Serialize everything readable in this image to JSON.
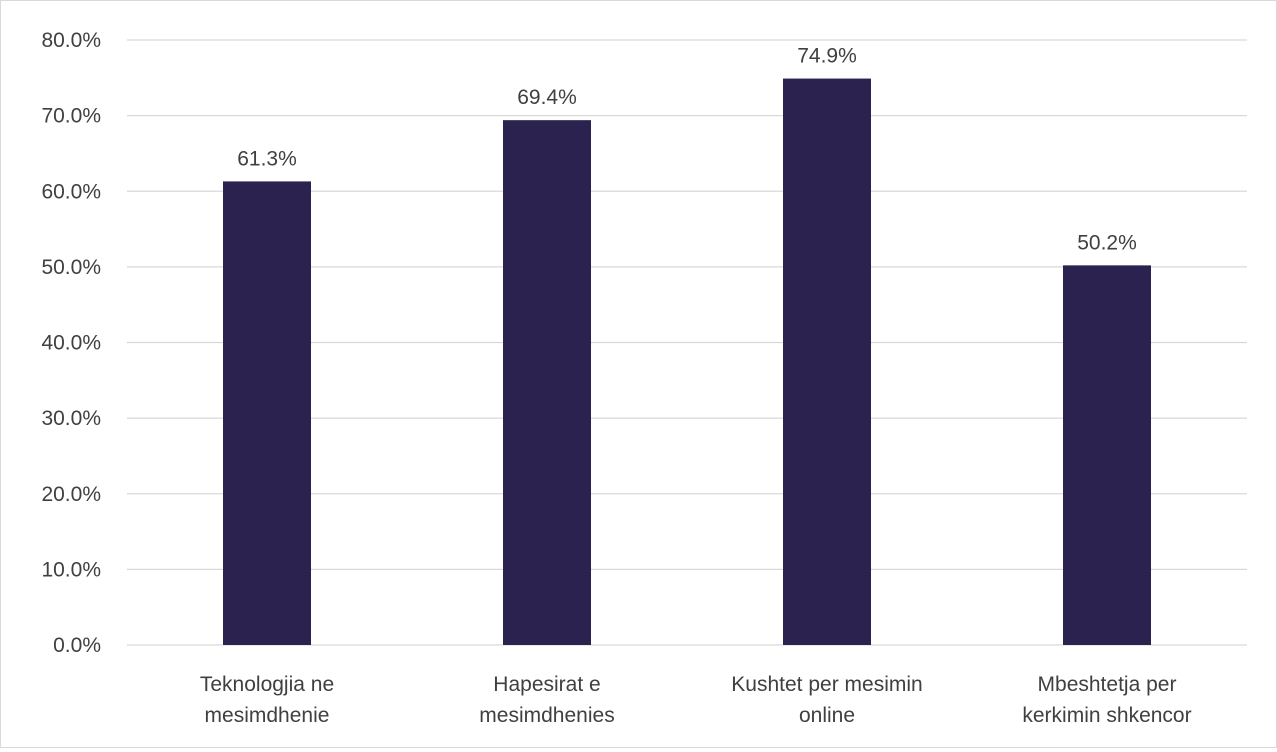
{
  "chart_data": {
    "type": "bar",
    "title": "",
    "xlabel": "",
    "ylabel": "",
    "categories": [
      [
        "Teknologjia ne",
        "mesimdhenie"
      ],
      [
        "Hapesirat e",
        "mesimdhenies"
      ],
      [
        "Kushtet per mesimin",
        "online"
      ],
      [
        "Mbeshtetja per",
        "kerkimin shkencor"
      ]
    ],
    "values": [
      61.3,
      69.4,
      74.9,
      50.2
    ],
    "data_labels": [
      "61.3%",
      "69.4%",
      "74.9%",
      "50.2%"
    ],
    "ylim": [
      0,
      80
    ],
    "yticks": [
      0,
      10,
      20,
      30,
      40,
      50,
      60,
      70,
      80
    ],
    "ytick_labels": [
      "0.0%",
      "10.0%",
      "20.0%",
      "30.0%",
      "40.0%",
      "50.0%",
      "60.0%",
      "70.0%",
      "80.0%"
    ],
    "grid": true,
    "legend": "none",
    "colors": {
      "bar": "#2b2250",
      "grid": "#d9d9d9",
      "text": "#404040"
    }
  }
}
